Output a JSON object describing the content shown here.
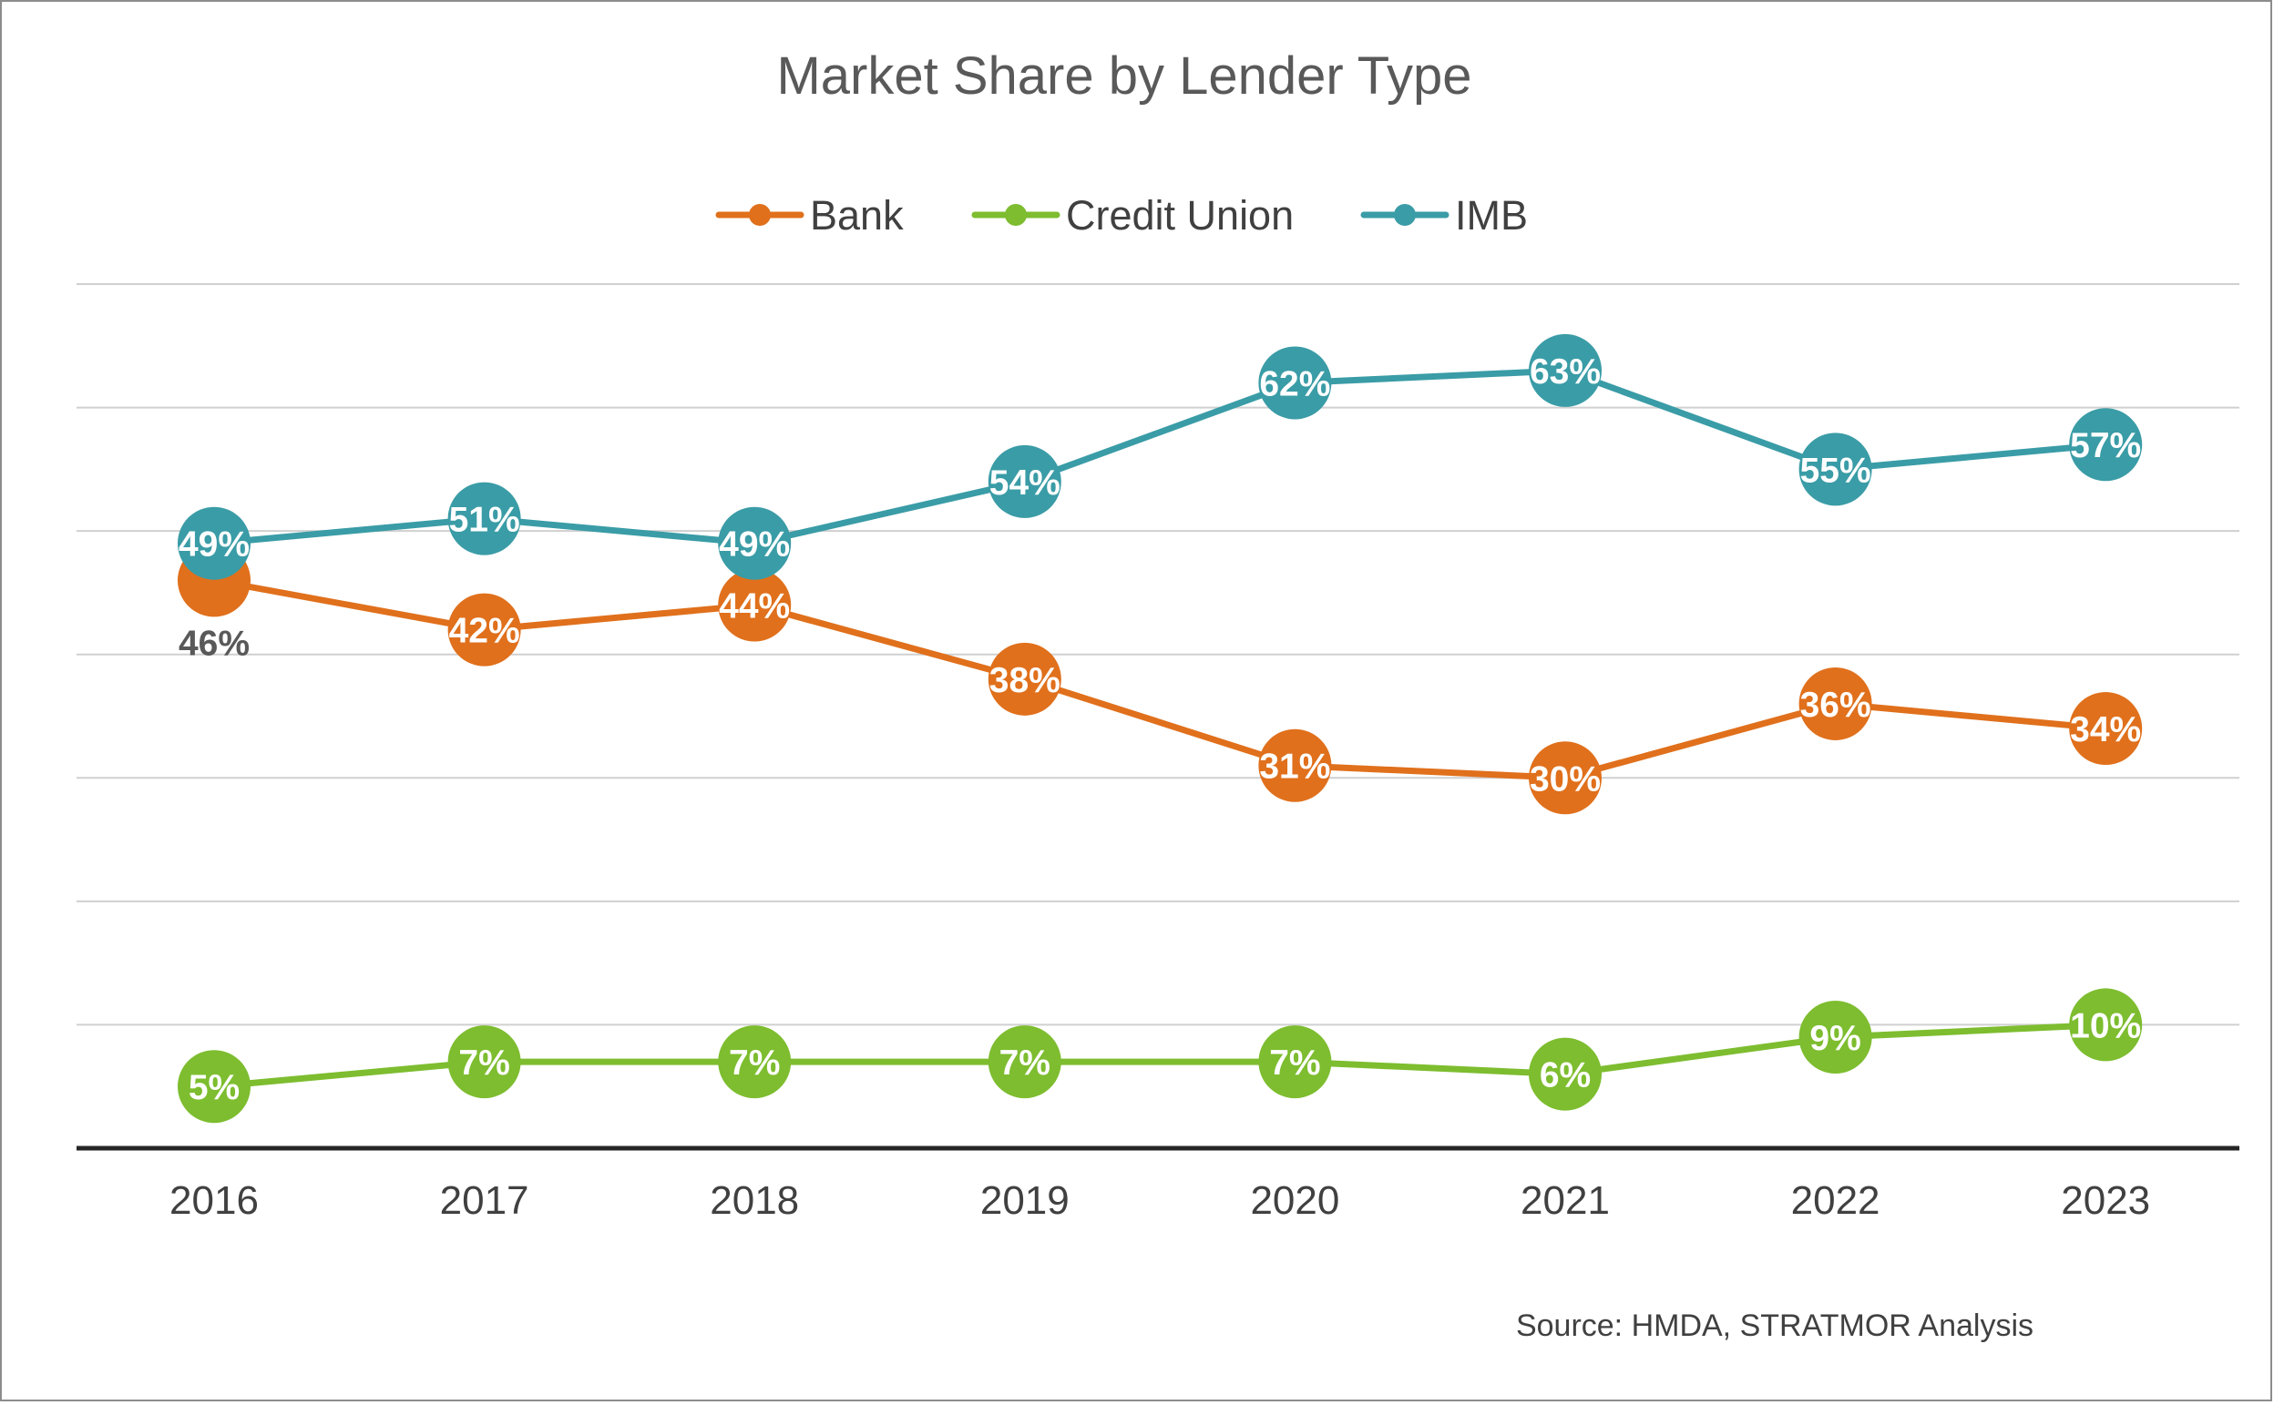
{
  "chart_data": {
    "type": "line",
    "title": "Market Share by Lender Type",
    "categories": [
      "2016",
      "2017",
      "2018",
      "2019",
      "2020",
      "2021",
      "2022",
      "2023"
    ],
    "series": [
      {
        "name": "Bank",
        "color": "#E0701C",
        "values": [
          46,
          42,
          44,
          38,
          31,
          30,
          36,
          34
        ],
        "labels": [
          "46%",
          "42%",
          "44%",
          "38%",
          "31%",
          "30%",
          "36%",
          "34%"
        ]
      },
      {
        "name": "Credit Union",
        "color": "#7DBD2F",
        "values": [
          5,
          7,
          7,
          7,
          7,
          6,
          9,
          10
        ],
        "labels": [
          "5%",
          "7%",
          "7%",
          "7%",
          "7%",
          "6%",
          "9%",
          "10%"
        ]
      },
      {
        "name": "IMB",
        "color": "#3A9CA6",
        "values": [
          49,
          51,
          49,
          54,
          62,
          63,
          55,
          57
        ],
        "labels": [
          "49%",
          "51%",
          "49%",
          "54%",
          "62%",
          "63%",
          "55%",
          "57%"
        ]
      }
    ],
    "ylim": [
      0,
      70
    ],
    "ytick_step": 10,
    "y_tick_labels_shown": false,
    "grid": true,
    "legend_position": "top",
    "source": "Source: HMDA, STRATMOR Analysis"
  }
}
